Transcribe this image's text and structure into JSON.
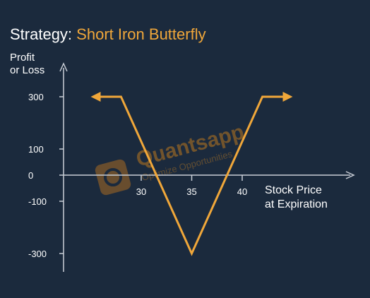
{
  "title": {
    "prefix": "Strategy:",
    "strategy": "Short Iron Butterfly"
  },
  "watermark": {
    "brand": "Quantsapp",
    "tagline": "Optimize Opportunities"
  },
  "colors": {
    "background": "#1b2a3d",
    "payoff": "#f0a73a",
    "axis": "#c9ced6",
    "text": "#ffffff"
  },
  "chart_data": {
    "type": "line",
    "title": "Short Iron Butterfly",
    "xlabel": "Stock Price\nat Expiration",
    "ylabel": "Profit\nor Loss",
    "x_ticks": [
      30,
      35,
      40
    ],
    "y_ticks": [
      300,
      100,
      0,
      -100,
      -300
    ],
    "series": [
      {
        "x": [
          25,
          28,
          35,
          42,
          45
        ],
        "y": [
          300,
          300,
          -300,
          300,
          300
        ],
        "arrows": "both"
      }
    ]
  }
}
